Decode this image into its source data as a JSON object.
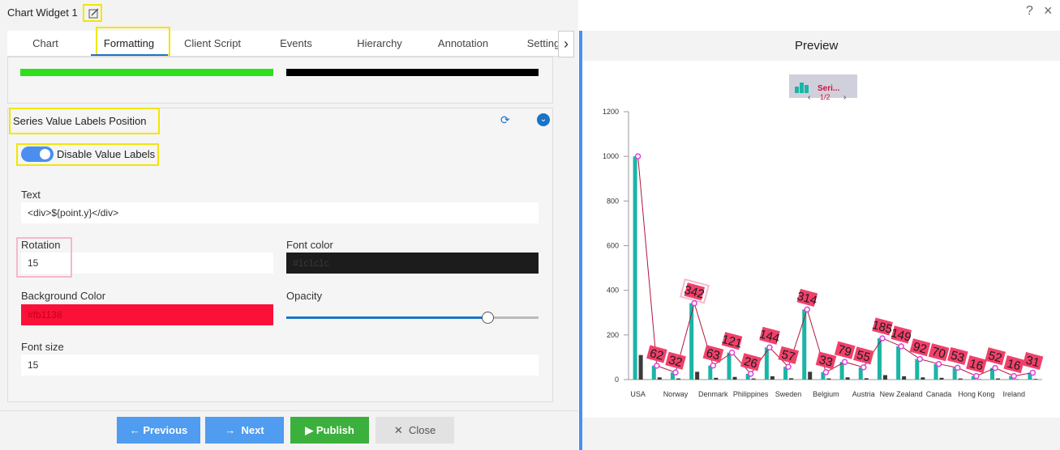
{
  "dialog": {
    "title": "Chart Widget 1",
    "help": "?",
    "close": "×",
    "tabs": [
      "Chart",
      "Formatting",
      "Client Script",
      "Events",
      "Hierarchy",
      "Annotation",
      "Setting"
    ],
    "section": {
      "title": "Series Value Labels Position",
      "toggle_label": "Disable Value Labels",
      "fields": {
        "text_label": "Text",
        "text_value": "<div>${point.y}</div>",
        "rotation_label": "Rotation",
        "rotation_value": "15",
        "font_color_label": "Font color",
        "font_color_value": "#1c1c1c",
        "background_label": "Background Color",
        "background_value": "#fb1138",
        "opacity_label": "Opacity",
        "font_size_label": "Font size",
        "font_size_value": "15"
      }
    },
    "buttons": [
      "Previous",
      "Next",
      "Publish",
      "Close"
    ],
    "preview_title": "Preview"
  },
  "chart_data": {
    "type": "bar_line",
    "legend_label": "Seri...",
    "legend_page": "1/2",
    "categories": [
      "USA",
      null,
      "Norway",
      null,
      "Denmark",
      null,
      "Philippines",
      null,
      "Sweden",
      null,
      "Belgium",
      null,
      "Austria",
      null,
      "New Zealand",
      null,
      "Canada",
      null,
      "Hong Kong",
      null,
      "Ireland",
      null
    ],
    "series": [
      {
        "kind": "bar",
        "color": "#1bb5a6",
        "values": [
          1000,
          62,
          32,
          342,
          63,
          121,
          26,
          144,
          57,
          314,
          33,
          79,
          55,
          185,
          149,
          92,
          70,
          53,
          16,
          52,
          16,
          31
        ]
      },
      {
        "kind": "bar",
        "color": "#3a3a3a",
        "values": [
          110,
          10,
          5,
          35,
          8,
          12,
          5,
          15,
          6,
          35,
          5,
          10,
          6,
          20,
          15,
          10,
          8,
          5,
          2,
          5,
          2,
          3
        ]
      },
      {
        "kind": "line",
        "color": "#b0163a",
        "marker_color": "#e040e0",
        "label_color": "#f0416b",
        "values": [
          1000,
          62,
          32,
          342,
          63,
          121,
          26,
          144,
          57,
          314,
          33,
          79,
          55,
          185,
          149,
          92,
          70,
          53,
          16,
          52,
          16,
          31
        ]
      }
    ],
    "ylim": [
      0,
      1200
    ],
    "yticks": [
      0,
      200,
      400,
      600,
      800,
      1000,
      1200
    ],
    "label_rotation": 15
  }
}
